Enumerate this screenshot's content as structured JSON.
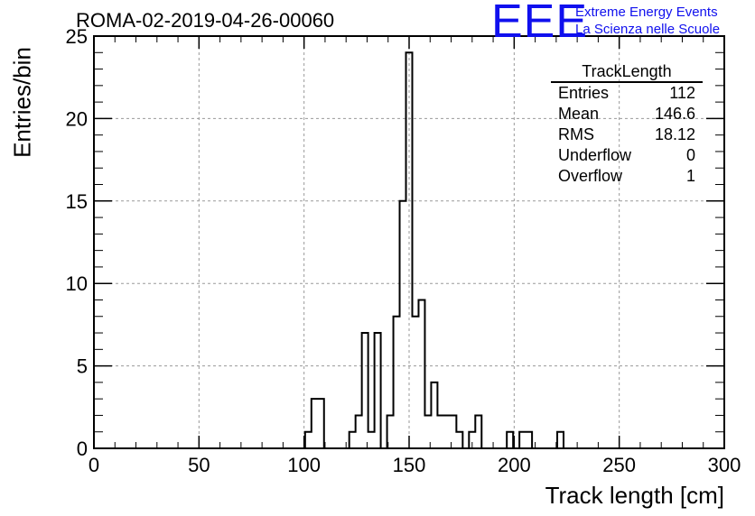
{
  "header": {
    "title": "ROMA-02-2019-04-26-00060",
    "logo_mark": "EEE",
    "logo_line1": "Extreme Energy Events",
    "logo_line2": "La Scienza nelle Scuole"
  },
  "stats": {
    "name": "TrackLength",
    "rows": [
      {
        "label": "Entries",
        "value": "112"
      },
      {
        "label": "Mean",
        "value": "146.6"
      },
      {
        "label": "RMS",
        "value": "18.12"
      },
      {
        "label": "Underflow",
        "value": "0"
      },
      {
        "label": "Overflow",
        "value": "1"
      }
    ]
  },
  "colors": {
    "line": "#000000",
    "logo": "#1010ee",
    "grid": "#999999"
  },
  "chart_data": {
    "type": "bar",
    "style": "step-histogram",
    "xlabel": "Track length [cm]",
    "ylabel": "Entries/bin",
    "xlim": [
      0,
      300
    ],
    "ylim": [
      0,
      25
    ],
    "bin_width": 3,
    "grid": true,
    "legend": "top-right",
    "x_ticks": [
      0,
      50,
      100,
      150,
      200,
      250,
      300
    ],
    "y_ticks": [
      0,
      5,
      10,
      15,
      20,
      25
    ],
    "bins": [
      {
        "x": 102,
        "y": 1
      },
      {
        "x": 105,
        "y": 3
      },
      {
        "x": 108,
        "y": 3
      },
      {
        "x": 123,
        "y": 1
      },
      {
        "x": 126,
        "y": 2
      },
      {
        "x": 129,
        "y": 7
      },
      {
        "x": 132,
        "y": 1
      },
      {
        "x": 135,
        "y": 7
      },
      {
        "x": 138,
        "y": 0
      },
      {
        "x": 141,
        "y": 2
      },
      {
        "x": 144,
        "y": 8
      },
      {
        "x": 147,
        "y": 15
      },
      {
        "x": 150,
        "y": 24
      },
      {
        "x": 153,
        "y": 8
      },
      {
        "x": 156,
        "y": 9
      },
      {
        "x": 159,
        "y": 2
      },
      {
        "x": 162,
        "y": 4
      },
      {
        "x": 165,
        "y": 2
      },
      {
        "x": 168,
        "y": 2
      },
      {
        "x": 171,
        "y": 2
      },
      {
        "x": 174,
        "y": 1
      },
      {
        "x": 180,
        "y": 1
      },
      {
        "x": 183,
        "y": 2
      },
      {
        "x": 198,
        "y": 1
      },
      {
        "x": 204,
        "y": 1
      },
      {
        "x": 207,
        "y": 1
      },
      {
        "x": 222,
        "y": 1
      }
    ]
  }
}
